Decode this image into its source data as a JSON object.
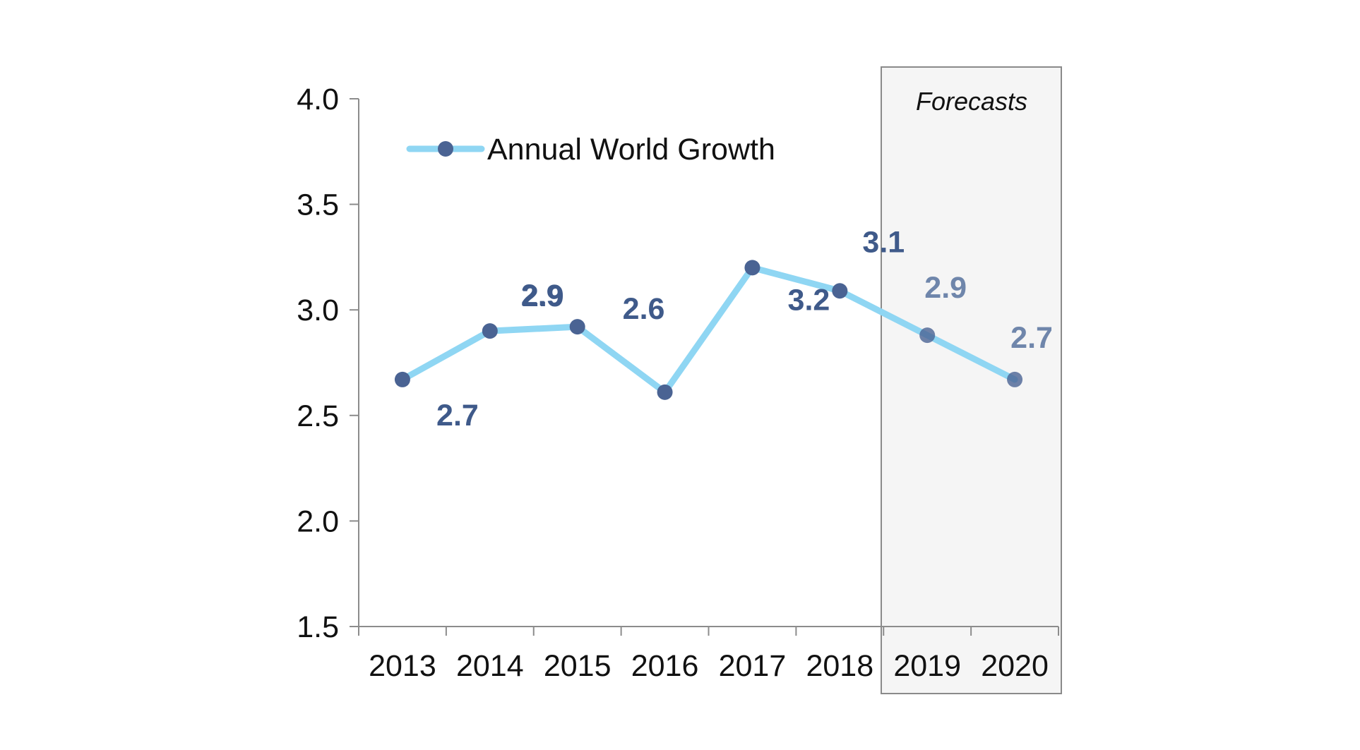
{
  "chart_data": {
    "type": "line",
    "title": "",
    "xlabel": "",
    "ylabel": "",
    "categories": [
      "2013",
      "2014",
      "2015",
      "2016",
      "2017",
      "2018",
      "2019",
      "2020"
    ],
    "series": [
      {
        "name": "Annual World Growth",
        "values": [
          2.67,
          2.9,
          2.92,
          2.61,
          3.2,
          3.09,
          2.88,
          2.67
        ],
        "data_labels": [
          "2.7",
          "2.9",
          "2.9",
          "2.6",
          "3.2",
          "3.1",
          "2.9",
          "2.7"
        ]
      }
    ],
    "ylim": [
      1.5,
      4.0
    ],
    "yticks": [
      "1.5",
      "2.0",
      "2.5",
      "3.0",
      "3.5",
      "4.0"
    ],
    "grid": false,
    "legend_position": "top-left",
    "forecast_region": {
      "label": "Forecasts",
      "categories": [
        "2019",
        "2020"
      ]
    },
    "colors": {
      "line": "#8fd6f3",
      "marker": "#4a6393",
      "data_label": "#3f5a8a",
      "forecast_data_label": "#6f86ab",
      "forecast_fill": "#f5f5f5",
      "forecast_border": "#8a8a8a",
      "axis": "#8c8c8c"
    }
  }
}
